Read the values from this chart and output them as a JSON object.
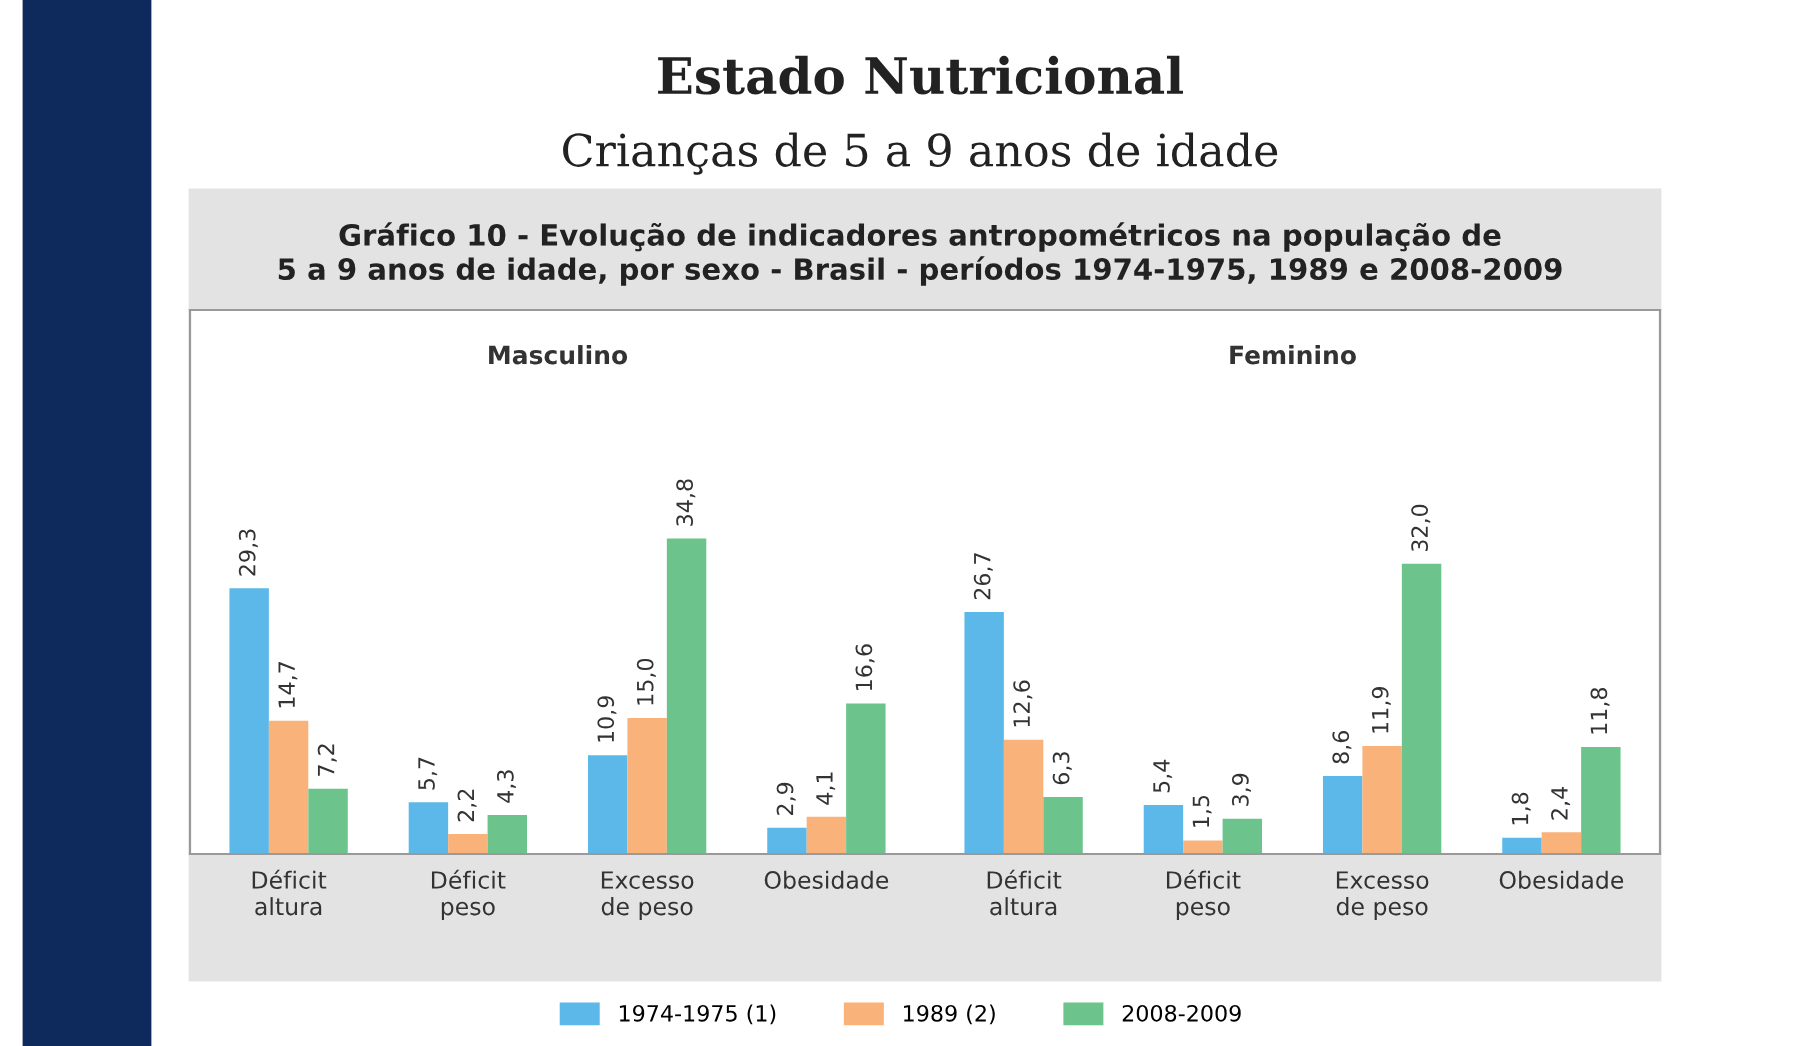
{
  "chart_data": [
    {
      "type": "bar",
      "title": "Masculino",
      "annotations": [
        "Estado Nutricional",
        "Crianças de 5 a 9 anos de idade",
        "Gráfico 10 - Evolução de indicadores antropométricos na população de\n5 a 9 anos de idade, por sexo - Brasil - períodos 1974-1975, 1989 e 2008-2009"
      ],
      "categories": [
        "Déficit\naltura",
        "Déficit\npeso",
        "Excesso\nde peso",
        "Obesidade"
      ],
      "ylim": [
        0,
        60
      ],
      "legend": "bottom",
      "series": [
        {
          "name": "1974-1975 (1)",
          "color": "#5bb8e8",
          "values": [
            29.3,
            5.7,
            10.9,
            2.9
          ],
          "value_labels": [
            "29,3",
            "5,7",
            "10,9",
            "2,9"
          ]
        },
        {
          "name": "1989 (2)",
          "color": "#f9b27a",
          "values": [
            14.7,
            2.2,
            15.0,
            4.1
          ],
          "value_labels": [
            "14,7",
            "2,2",
            "15,0",
            "4,1"
          ]
        },
        {
          "name": "2008-2009",
          "color": "#6cc48c",
          "values": [
            7.2,
            4.3,
            34.8,
            16.6
          ],
          "value_labels": [
            "7,2",
            "4,3",
            "34,8",
            "16,6"
          ]
        }
      ]
    },
    {
      "type": "bar",
      "title": "Feminino",
      "categories": [
        "Déficit\naltura",
        "Déficit\npeso",
        "Excesso\nde peso",
        "Obesidade"
      ],
      "ylim": [
        0,
        60
      ],
      "series": [
        {
          "color": "#5bb8e8",
          "values": [
            26.7,
            5.4,
            8.6,
            1.8
          ],
          "value_labels": [
            "26,7",
            "5,4",
            "8,6",
            "1,8"
          ]
        },
        {
          "color": "#f9b27a",
          "values": [
            12.6,
            1.5,
            11.9,
            2.4
          ],
          "value_labels": [
            "12,6",
            "1,5",
            "11,9",
            "2,4"
          ]
        },
        {
          "color": "#6cc48c",
          "values": [
            6.3,
            3.9,
            32.0,
            11.8
          ],
          "value_labels": [
            "6,3",
            "3,9",
            "32,0",
            "11,8"
          ]
        }
      ]
    }
  ]
}
